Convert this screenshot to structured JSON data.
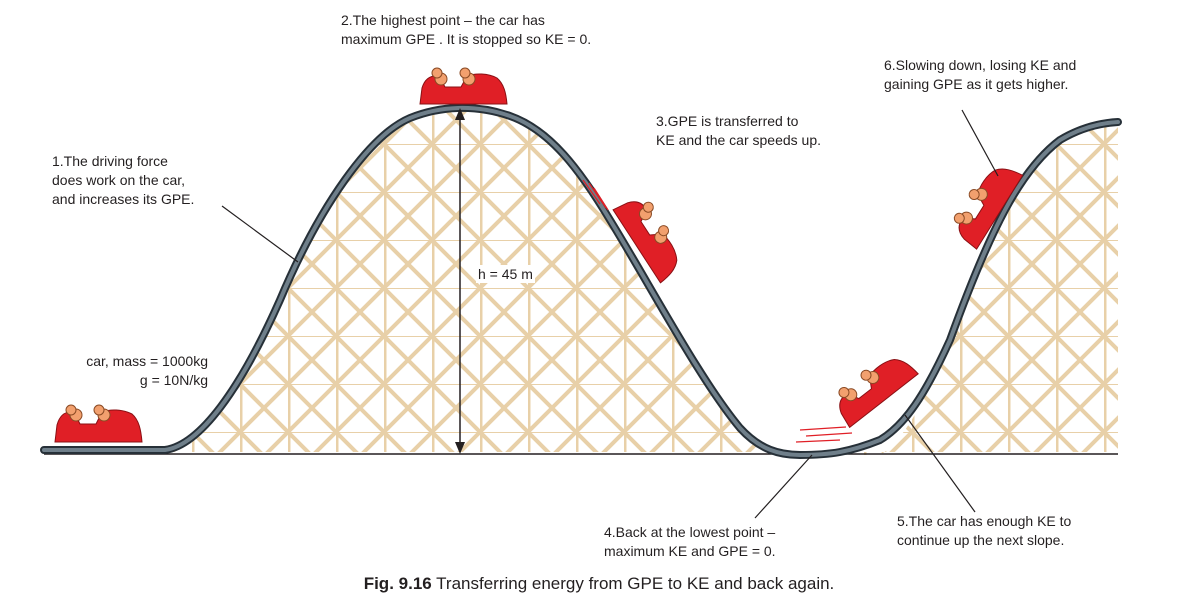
{
  "labels": {
    "step1": [
      "1.The driving force",
      "does work on the car,",
      "and increases its GPE."
    ],
    "step2": [
      "2.The highest point – the car has",
      "maximum GPE . It is stopped so KE = 0."
    ],
    "step3": [
      "3.GPE is transferred to",
      "KE and the car speeds up."
    ],
    "step4": [
      "4.Back at the lowest point –",
      "maximum KE and GPE = 0."
    ],
    "step5": [
      "5.The car has enough KE to",
      "continue up the next slope."
    ],
    "step6": [
      "6.Slowing down, losing KE and",
      "gaining GPE as it gets higher."
    ],
    "car_info": [
      "car, mass = 1000kg",
      "g = 10N/kg"
    ],
    "height": "h = 45 m"
  },
  "caption": {
    "fig_label": "Fig. 9.16",
    "text": " Transferring energy from GPE to KE and back again."
  },
  "colors": {
    "track": "#4d5b66",
    "track_edge": "#263038",
    "scaffold": "#e8d0a8",
    "car": "#e01f26",
    "rider": "#f2a06e",
    "text": "#231f20"
  }
}
